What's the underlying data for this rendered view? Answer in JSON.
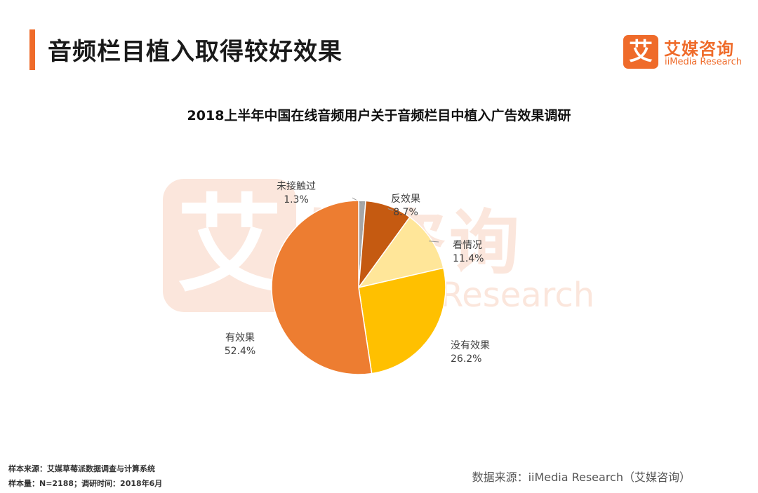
{
  "header": {
    "title": "音频栏目植入取得较好效果"
  },
  "logo": {
    "icon_char": "艾",
    "name_cn": "艾媒咨询",
    "name_en": "iiMedia Research"
  },
  "watermark": {
    "icon_char": "艾",
    "name_cn": "媒咨询",
    "name_en": "Research"
  },
  "chart_data": {
    "type": "pie",
    "title": "2018上半年中国在线音频用户关于音频栏目中植入广告效果调研",
    "slices": [
      {
        "label": "未接触过",
        "value": 1.3,
        "display": "1.3%",
        "color": "#a6a6a6"
      },
      {
        "label": "反效果",
        "value": 8.7,
        "display": "8.7%",
        "color": "#c55a11"
      },
      {
        "label": "看情况",
        "value": 11.4,
        "display": "11.4%",
        "color": "#ffe699"
      },
      {
        "label": "没有效果",
        "value": 26.2,
        "display": "26.2%",
        "color": "#ffc000"
      },
      {
        "label": "有效果",
        "value": 52.4,
        "display": "52.4%",
        "color": "#ed7d31"
      }
    ],
    "start_angle_deg": 0,
    "direction": "clockwise"
  },
  "footer": {
    "sample_source": "样本来源：艾媒草莓派数据调查与计算系统",
    "sample_size": "样本量：N=2188；调研时间：2018年6月",
    "data_source": "数据来源：iiMedia Research（艾媒咨询）"
  }
}
